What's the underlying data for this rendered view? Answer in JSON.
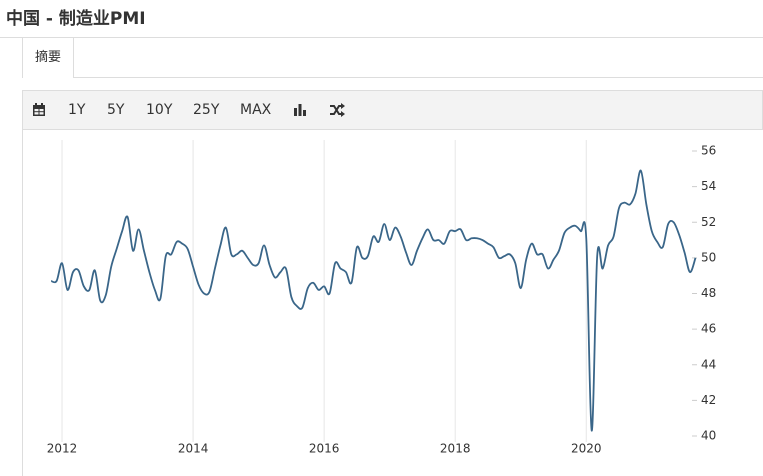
{
  "header": {
    "title": "中国 - 制造业PMI"
  },
  "tabs": [
    "摘要"
  ],
  "toolbar": [
    "1Y",
    "5Y",
    "10Y",
    "25Y",
    "MAX"
  ],
  "chart_data": {
    "type": "line",
    "x": [
      2011.833,
      2011.917,
      2012,
      2012.083,
      2012.167,
      2012.25,
      2012.333,
      2012.417,
      2012.5,
      2012.583,
      2012.667,
      2012.75,
      2012.833,
      2012.917,
      2013,
      2013.083,
      2013.167,
      2013.25,
      2013.333,
      2013.417,
      2013.5,
      2013.583,
      2013.667,
      2013.75,
      2013.833,
      2013.917,
      2014,
      2014.083,
      2014.167,
      2014.25,
      2014.333,
      2014.417,
      2014.5,
      2014.583,
      2014.667,
      2014.75,
      2014.833,
      2014.917,
      2015,
      2015.083,
      2015.167,
      2015.25,
      2015.333,
      2015.417,
      2015.5,
      2015.583,
      2015.667,
      2015.75,
      2015.833,
      2015.917,
      2016,
      2016.083,
      2016.167,
      2016.25,
      2016.333,
      2016.417,
      2016.5,
      2016.583,
      2016.667,
      2016.75,
      2016.833,
      2016.917,
      2017,
      2017.083,
      2017.167,
      2017.25,
      2017.333,
      2017.417,
      2017.5,
      2017.583,
      2017.667,
      2017.75,
      2017.833,
      2017.917,
      2018,
      2018.083,
      2018.167,
      2018.25,
      2018.333,
      2018.417,
      2018.5,
      2018.583,
      2018.667,
      2018.75,
      2018.833,
      2018.917,
      2019,
      2019.083,
      2019.167,
      2019.25,
      2019.333,
      2019.417,
      2019.5,
      2019.583,
      2019.667,
      2019.75,
      2019.833,
      2019.917,
      2020,
      2020.083,
      2020.167,
      2020.25,
      2020.333,
      2020.417,
      2020.5,
      2020.583,
      2020.667,
      2020.75,
      2020.833,
      2020.917,
      2021,
      2021.083,
      2021.167,
      2021.25,
      2021.333,
      2021.417,
      2021.5,
      2021.583,
      2021.667
    ],
    "series": [
      {
        "color": "#3a6689",
        "values": [
          48.7,
          48.7,
          49.7,
          48.2,
          49.2,
          49.3,
          48.4,
          48.2,
          49.3,
          47.6,
          47.9,
          49.5,
          50.5,
          51.5,
          52.3,
          50.4,
          51.6,
          50.4,
          49.2,
          48.2,
          47.7,
          50.1,
          50.2,
          50.9,
          50.8,
          50.5,
          49.5,
          48.5,
          48.0,
          48.1,
          49.4,
          50.7,
          51.7,
          50.2,
          50.2,
          50.4,
          50.0,
          49.6,
          49.7,
          50.7,
          49.6,
          48.9,
          49.2,
          49.4,
          47.8,
          47.3,
          47.2,
          48.3,
          48.6,
          48.2,
          48.4,
          48.0,
          49.7,
          49.4,
          49.2,
          48.6,
          50.6,
          50.0,
          50.1,
          51.2,
          50.9,
          51.9,
          51.0,
          51.7,
          51.2,
          50.3,
          49.6,
          50.4,
          51.1,
          51.6,
          51.0,
          51.0,
          50.8,
          51.5,
          51.5,
          51.6,
          51.0,
          51.1,
          51.1,
          51.0,
          50.8,
          50.6,
          50.0,
          50.1,
          50.2,
          49.7,
          48.3,
          49.9,
          50.8,
          50.2,
          50.2,
          49.4,
          49.9,
          50.4,
          51.4,
          51.7,
          51.8,
          51.5,
          51.1,
          40.3,
          50.1,
          49.4,
          50.7,
          51.2,
          52.8,
          53.1,
          53.0,
          53.6,
          54.9,
          53.0,
          51.5,
          50.9,
          50.6,
          51.9,
          52.0,
          51.3,
          50.3,
          49.2,
          50.0
        ]
      }
    ],
    "xlim": [
      2011.74,
      2021.69
    ],
    "ylim": [
      40,
      56
    ],
    "xticks": [
      2012,
      2014,
      2016,
      2018,
      2020
    ],
    "yticks": [
      40,
      42,
      44,
      46,
      48,
      50,
      52,
      54,
      56
    ],
    "grid": true
  }
}
